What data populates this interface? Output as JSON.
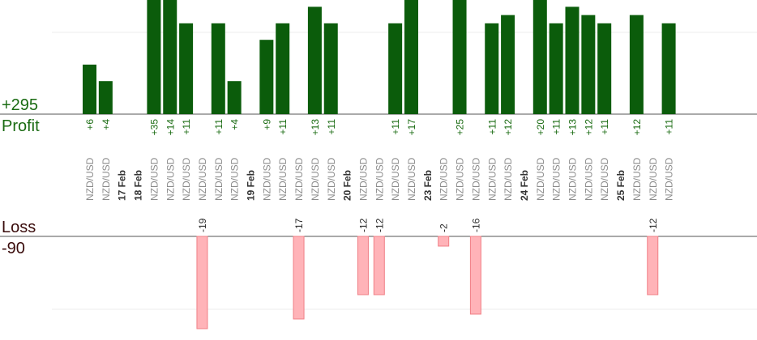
{
  "chart_data": {
    "type": "bar",
    "profit_total": "+295",
    "profit_label": "Profit",
    "loss_label": "Loss",
    "loss_total": "-90",
    "colors": {
      "profit": "#0b5c0b",
      "loss": "#ffb3b8",
      "loss_border": "#f07f86",
      "profit_text": "#1a6b12"
    },
    "items": [
      {
        "type": "trade",
        "pair": "NZD/USD",
        "value": 6
      },
      {
        "type": "trade",
        "pair": "NZD/USD",
        "value": 4
      },
      {
        "type": "date",
        "label": "17 Feb"
      },
      {
        "type": "date",
        "label": "18 Feb"
      },
      {
        "type": "trade",
        "pair": "NZD/USD",
        "value": 35
      },
      {
        "type": "trade",
        "pair": "NZD/USD",
        "value": 14
      },
      {
        "type": "trade",
        "pair": "NZD/USD",
        "value": 11
      },
      {
        "type": "trade",
        "pair": "NZD/USD",
        "value": -19
      },
      {
        "type": "trade",
        "pair": "NZD/USD",
        "value": 11
      },
      {
        "type": "trade",
        "pair": "NZD/USD",
        "value": 4
      },
      {
        "type": "date",
        "label": "19 Feb"
      },
      {
        "type": "trade",
        "pair": "NZD/USD",
        "value": 9
      },
      {
        "type": "trade",
        "pair": "NZD/USD",
        "value": 11
      },
      {
        "type": "trade",
        "pair": "NZD/USD",
        "value": -17
      },
      {
        "type": "trade",
        "pair": "NZD/USD",
        "value": 13
      },
      {
        "type": "trade",
        "pair": "NZD/USD",
        "value": 11
      },
      {
        "type": "date",
        "label": "20 Feb"
      },
      {
        "type": "trade",
        "pair": "NZD/USD",
        "value": -12
      },
      {
        "type": "trade",
        "pair": "NZD/USD",
        "value": -12
      },
      {
        "type": "trade",
        "pair": "NZD/USD",
        "value": 11
      },
      {
        "type": "trade",
        "pair": "NZD/USD",
        "value": 17
      },
      {
        "type": "date",
        "label": "23 Feb"
      },
      {
        "type": "trade",
        "pair": "NZD/USD",
        "value": -2
      },
      {
        "type": "trade",
        "pair": "NZD/USD",
        "value": 25
      },
      {
        "type": "trade",
        "pair": "NZD/USD",
        "value": -16
      },
      {
        "type": "trade",
        "pair": "NZD/USD",
        "value": 11
      },
      {
        "type": "trade",
        "pair": "NZD/USD",
        "value": 12
      },
      {
        "type": "date",
        "label": "24 Feb"
      },
      {
        "type": "trade",
        "pair": "NZD/USD",
        "value": 20
      },
      {
        "type": "trade",
        "pair": "NZD/USD",
        "value": 11
      },
      {
        "type": "trade",
        "pair": "NZD/USD",
        "value": 13
      },
      {
        "type": "trade",
        "pair": "NZD/USD",
        "value": 12
      },
      {
        "type": "trade",
        "pair": "NZD/USD",
        "value": 11
      },
      {
        "type": "date",
        "label": "25 Feb"
      },
      {
        "type": "trade",
        "pair": "NZD/USD",
        "value": 12
      },
      {
        "type": "trade",
        "pair": "NZD/USD",
        "value": -12
      },
      {
        "type": "trade",
        "pair": "NZD/USD",
        "value": 11
      }
    ]
  }
}
